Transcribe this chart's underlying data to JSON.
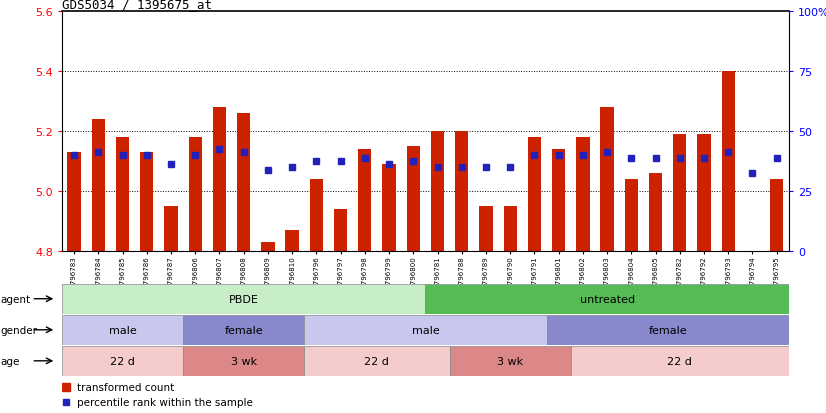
{
  "title": "GDS5034 / 1395675_at",
  "samples": [
    "GSM796783",
    "GSM796784",
    "GSM796785",
    "GSM796786",
    "GSM796787",
    "GSM796806",
    "GSM796807",
    "GSM796808",
    "GSM796809",
    "GSM796810",
    "GSM796796",
    "GSM796797",
    "GSM796798",
    "GSM796799",
    "GSM796800",
    "GSM796781",
    "GSM796788",
    "GSM796789",
    "GSM796790",
    "GSM796791",
    "GSM796801",
    "GSM796802",
    "GSM796803",
    "GSM796804",
    "GSM796805",
    "GSM796782",
    "GSM796792",
    "GSM796793",
    "GSM796794",
    "GSM796795"
  ],
  "bar_heights": [
    5.13,
    5.24,
    5.18,
    5.13,
    4.95,
    5.18,
    5.28,
    5.26,
    4.83,
    4.87,
    5.04,
    4.94,
    5.14,
    5.09,
    5.15,
    5.2,
    5.2,
    4.95,
    4.95,
    5.18,
    5.14,
    5.18,
    5.28,
    5.04,
    5.06,
    5.19,
    5.19,
    5.4,
    4.8,
    5.04
  ],
  "blue_heights": [
    5.12,
    5.13,
    5.12,
    5.12,
    5.09,
    5.12,
    5.14,
    5.13,
    5.07,
    5.08,
    5.1,
    5.1,
    5.11,
    5.09,
    5.1,
    5.08,
    5.08,
    5.08,
    5.08,
    5.12,
    5.12,
    5.12,
    5.13,
    5.11,
    5.11,
    5.11,
    5.11,
    5.13,
    5.06,
    5.11
  ],
  "ymin": 4.8,
  "ymax": 5.6,
  "yticks": [
    4.8,
    5.0,
    5.2,
    5.4,
    5.6
  ],
  "right_ytick_pcts": [
    0,
    25,
    50,
    75,
    100
  ],
  "right_ytick_labels": [
    "0",
    "25",
    "50",
    "75",
    "100%"
  ],
  "bar_color": "#CC2200",
  "blue_color": "#2222BB",
  "agent_groups": [
    {
      "label": "PBDE",
      "start": 0,
      "end": 15,
      "color": "#C8EEC8"
    },
    {
      "label": "untreated",
      "start": 15,
      "end": 30,
      "color": "#55BB55"
    }
  ],
  "gender_groups": [
    {
      "label": "male",
      "start": 0,
      "end": 5,
      "color": "#C8C8EE"
    },
    {
      "label": "female",
      "start": 5,
      "end": 10,
      "color": "#8888CC"
    },
    {
      "label": "male",
      "start": 10,
      "end": 20,
      "color": "#C8C8EE"
    },
    {
      "label": "female",
      "start": 20,
      "end": 30,
      "color": "#8888CC"
    }
  ],
  "age_groups": [
    {
      "label": "22 d",
      "start": 0,
      "end": 5,
      "color": "#F5CCCC"
    },
    {
      "label": "3 wk",
      "start": 5,
      "end": 10,
      "color": "#DD8888"
    },
    {
      "label": "22 d",
      "start": 10,
      "end": 16,
      "color": "#F5CCCC"
    },
    {
      "label": "3 wk",
      "start": 16,
      "end": 21,
      "color": "#DD8888"
    },
    {
      "label": "22 d",
      "start": 21,
      "end": 30,
      "color": "#F5CCCC"
    }
  ],
  "row_labels": [
    "agent",
    "gender",
    "age"
  ],
  "legend_items": [
    {
      "label": "transformed count",
      "color": "#CC2200"
    },
    {
      "label": "percentile rank within the sample",
      "color": "#2222BB"
    }
  ]
}
